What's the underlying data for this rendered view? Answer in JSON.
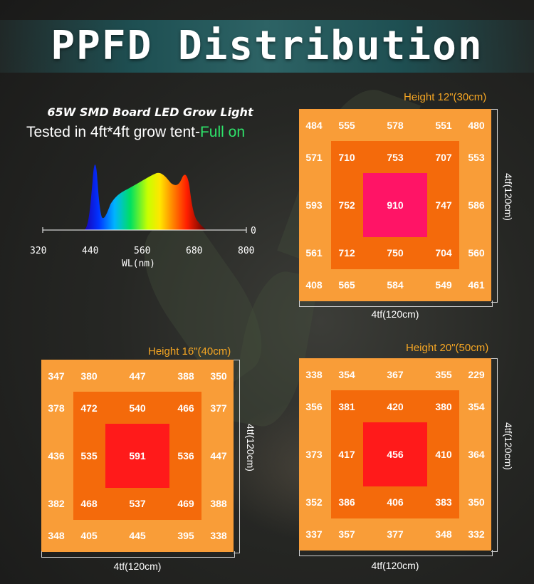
{
  "title": "PPFD Distribution",
  "product_name": "65W SMD Board LED Grow Light",
  "test_prefix": "Tested in 4ft*4ft grow tent-",
  "test_highlight": "Full on",
  "spectrum": {
    "x_ticks": [
      "320",
      "440",
      "560",
      "680",
      "800"
    ],
    "y_tick": "0",
    "xlabel": "WL(nm)"
  },
  "colors": {
    "outer": "#f99d38",
    "middle": "#f46a0b",
    "center_12": "#ff1466",
    "center_16": "#ff1a1a",
    "center_20": "#ff1a1a",
    "accent": "#f6a623",
    "highlight": "#2ee36a"
  },
  "plots": [
    {
      "height_label": "Height 12\"(30cm)",
      "width_label": "4tf(120cm)",
      "depth_label": "4tf(120cm)",
      "rows": [
        [
          "484",
          "555",
          "578",
          "551",
          "480"
        ],
        [
          "571",
          "710",
          "753",
          "707",
          "553"
        ],
        [
          "593",
          "752",
          "910",
          "747",
          "586"
        ],
        [
          "561",
          "712",
          "750",
          "704",
          "560"
        ],
        [
          "408",
          "565",
          "584",
          "549",
          "461"
        ]
      ]
    },
    {
      "height_label": "Height 16\"(40cm)",
      "width_label": "4tf(120cm)",
      "depth_label": "4tf(120cm)",
      "rows": [
        [
          "347",
          "380",
          "447",
          "388",
          "350"
        ],
        [
          "378",
          "472",
          "540",
          "466",
          "377"
        ],
        [
          "436",
          "535",
          "591",
          "536",
          "447"
        ],
        [
          "382",
          "468",
          "537",
          "469",
          "388"
        ],
        [
          "348",
          "405",
          "445",
          "395",
          "338"
        ]
      ]
    },
    {
      "height_label": "Height 20\"(50cm)",
      "width_label": "4tf(120cm)",
      "depth_label": "4tf(120cm)",
      "rows": [
        [
          "338",
          "354",
          "367",
          "355",
          "229"
        ],
        [
          "356",
          "381",
          "420",
          "380",
          "354"
        ],
        [
          "373",
          "417",
          "456",
          "410",
          "364"
        ],
        [
          "352",
          "386",
          "406",
          "383",
          "350"
        ],
        [
          "337",
          "357",
          "377",
          "348",
          "332"
        ]
      ]
    }
  ]
}
